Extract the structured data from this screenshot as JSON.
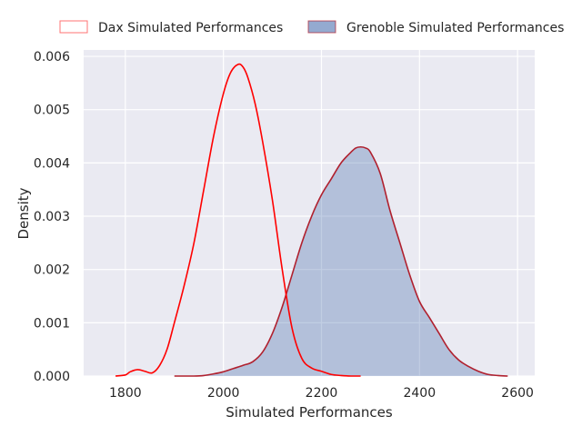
{
  "chart_data": {
    "type": "area",
    "xlabel": "Simulated Performances",
    "ylabel": "Density",
    "xlim": [
      1715,
      2635
    ],
    "ylim": [
      0,
      0.00612
    ],
    "xticks": [
      1800,
      2000,
      2200,
      2400,
      2600
    ],
    "yticks": [
      0.0,
      0.001,
      0.002,
      0.003,
      0.004,
      0.005,
      0.006
    ],
    "ytick_labels": [
      "0.000",
      "0.001",
      "0.002",
      "0.003",
      "0.004",
      "0.005",
      "0.006"
    ],
    "grid": true,
    "legend_position": "top",
    "series": [
      {
        "name": "Dax Simulated Performances",
        "style": "line",
        "color": "#ff0000",
        "x": [
          1780,
          1800,
          1810,
          1825,
          1840,
          1855,
          1870,
          1885,
          1900,
          1920,
          1940,
          1960,
          1980,
          2000,
          2015,
          2030,
          2040,
          2050,
          2065,
          2080,
          2100,
          2120,
          2140,
          2160,
          2180,
          2200,
          2220,
          2240,
          2260,
          2280
        ],
        "y": [
          0.0,
          2e-05,
          8e-05,
          0.00012,
          9e-05,
          6e-05,
          0.0002,
          0.0005,
          0.001,
          0.0017,
          0.0025,
          0.0035,
          0.0045,
          0.0053,
          0.0057,
          0.00585,
          0.0058,
          0.0056,
          0.0051,
          0.0044,
          0.0033,
          0.002,
          0.0009,
          0.00033,
          0.00015,
          9e-05,
          3e-05,
          1e-05,
          0.0,
          0.0
        ]
      },
      {
        "name": "Grenoble Simulated Performances",
        "style": "filled",
        "color": "#4c72b0",
        "edge_color": "#b0202e",
        "x": [
          1900,
          1940,
          1960,
          1980,
          2000,
          2020,
          2040,
          2060,
          2080,
          2100,
          2120,
          2140,
          2160,
          2180,
          2200,
          2220,
          2240,
          2260,
          2270,
          2280,
          2290,
          2300,
          2320,
          2340,
          2360,
          2380,
          2400,
          2420,
          2440,
          2460,
          2480,
          2500,
          2520,
          2540,
          2560,
          2580
        ],
        "y": [
          0.0,
          0.0,
          1e-05,
          4e-05,
          8e-05,
          0.00014,
          0.0002,
          0.00027,
          0.00045,
          0.0008,
          0.0013,
          0.0019,
          0.0025,
          0.003,
          0.0034,
          0.0037,
          0.004,
          0.0042,
          0.00428,
          0.0043,
          0.00428,
          0.0042,
          0.0038,
          0.0031,
          0.0025,
          0.0019,
          0.0014,
          0.0011,
          0.0008,
          0.0005,
          0.0003,
          0.00018,
          9e-05,
          3e-05,
          1e-05,
          0.0
        ]
      }
    ]
  }
}
